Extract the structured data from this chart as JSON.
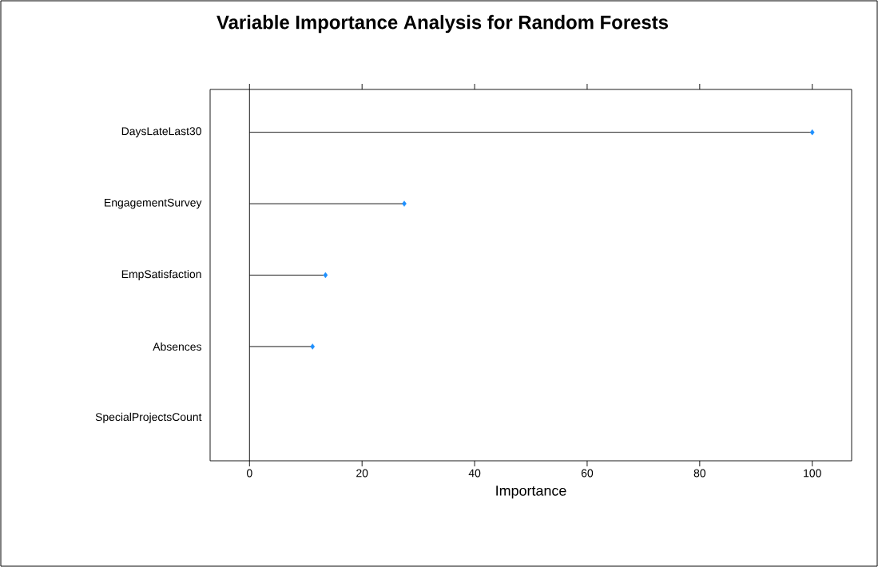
{
  "chart_data": {
    "type": "lollipop",
    "title": "Variable Importance Analysis for Random Forests",
    "xlabel": "Importance",
    "orientation": "horizontal",
    "categories": [
      "DaysLateLast30",
      "EngagementSurvey",
      "EmpSatisfaction",
      "Absences",
      "SpecialProjectsCount"
    ],
    "values": [
      100,
      27.5,
      13.5,
      11.2,
      null
    ],
    "color": "#1e90ff",
    "marker": "diamond",
    "xlim": [
      -7,
      107
    ],
    "xticks": [
      0,
      20,
      40,
      60,
      80,
      100
    ],
    "ref_lines": [
      {
        "axis": "x",
        "value": 0,
        "color": "#000000"
      }
    ],
    "grid": false
  }
}
